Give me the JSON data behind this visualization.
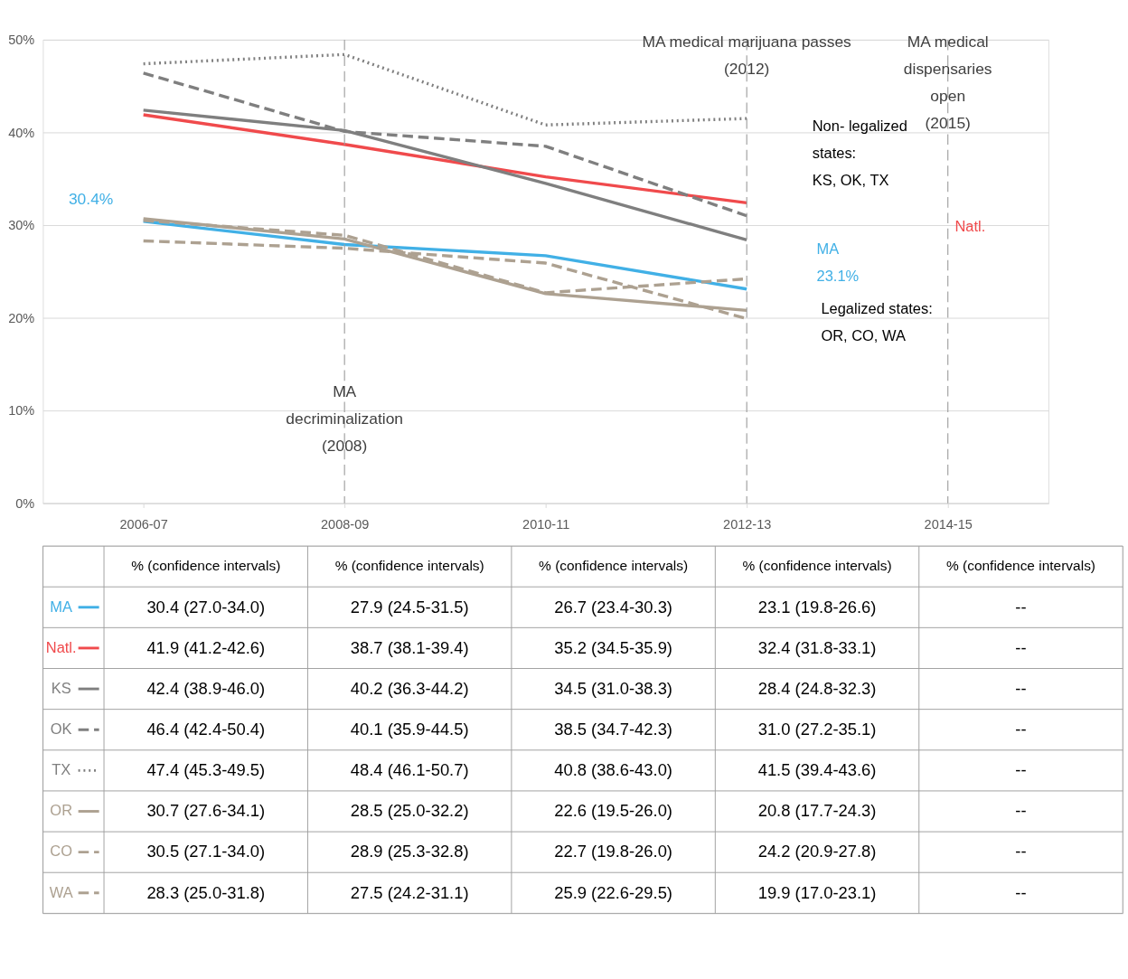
{
  "chart_data": {
    "type": "line",
    "categories": [
      "2006-07",
      "2008-09",
      "2010-11",
      "2012-13",
      "2014-15"
    ],
    "ylim": [
      0,
      50
    ],
    "yticks": [
      {
        "value": 0,
        "label": "0%"
      },
      {
        "value": 10,
        "label": "10%"
      },
      {
        "value": 20,
        "label": "20%"
      },
      {
        "value": 30,
        "label": "30%"
      },
      {
        "value": 40,
        "label": "40%"
      },
      {
        "value": 50,
        "label": "50%"
      }
    ],
    "grid": "y",
    "legend": "bottom",
    "series": [
      {
        "name": "MA",
        "color": "#41b0e6",
        "line_style": "solid",
        "values": [
          30.4,
          27.9,
          26.7,
          23.1,
          null
        ],
        "value_labels": [
          "30.4 (27.0-34.0)",
          "27.9 (24.5-31.5)",
          "26.7 (23.4-30.3)",
          "23.1 (19.8-26.6)",
          "--"
        ]
      },
      {
        "name": "Natl.",
        "color": "#f04a4c",
        "line_style": "solid",
        "values": [
          41.9,
          38.7,
          35.2,
          32.4,
          null
        ],
        "value_labels": [
          "41.9 (41.2-42.6)",
          "38.7 (38.1-39.4)",
          "35.2 (34.5-35.9)",
          "32.4 (31.8-33.1)",
          "--"
        ]
      },
      {
        "name": "KS",
        "color": "#7f7f7f",
        "line_style": "solid",
        "values": [
          42.4,
          40.2,
          34.5,
          28.4,
          null
        ],
        "value_labels": [
          "42.4 (38.9-46.0)",
          "40.2 (36.3-44.2)",
          "34.5 (31.0-38.3)",
          "28.4 (24.8-32.3)",
          "--"
        ]
      },
      {
        "name": "OK",
        "color": "#7f7f7f",
        "line_style": "dashed",
        "values": [
          46.4,
          40.1,
          38.5,
          31.0,
          null
        ],
        "value_labels": [
          "46.4 (42.4-50.4)",
          "40.1 (35.9-44.5)",
          "38.5 (34.7-42.3)",
          "31.0 (27.2-35.1)",
          "--"
        ]
      },
      {
        "name": "TX",
        "color": "#7f7f7f",
        "line_style": "dotted",
        "values": [
          47.4,
          48.4,
          40.8,
          41.5,
          null
        ],
        "value_labels": [
          "47.4 (45.3-49.5)",
          "48.4 (46.1-50.7)",
          "40.8 (38.6-43.0)",
          "41.5 (39.4-43.6)",
          "--"
        ]
      },
      {
        "name": "OR",
        "color": "#ada191",
        "line_style": "solid",
        "values": [
          30.7,
          28.5,
          22.6,
          20.8,
          null
        ],
        "value_labels": [
          "30.7 (27.6-34.1)",
          "28.5 (25.0-32.2)",
          "22.6 (19.5-26.0)",
          "20.8 (17.7-24.3)",
          "--"
        ]
      },
      {
        "name": "CO",
        "color": "#ada191",
        "line_style": "dashed",
        "values": [
          30.5,
          28.9,
          22.7,
          24.2,
          null
        ],
        "value_labels": [
          "30.5 (27.1-34.0)",
          "28.9 (25.3-32.8)",
          "22.7 (19.8-26.0)",
          "24.2 (20.9-27.8)",
          "--"
        ]
      },
      {
        "name": "WA",
        "color": "#ada191",
        "line_style": "dashed",
        "values": [
          28.3,
          27.5,
          25.9,
          19.9,
          null
        ],
        "value_labels": [
          "28.3 (25.0-31.8)",
          "27.5 (24.2-31.1)",
          "25.9 (22.6-29.5)",
          "19.9 (17.0-23.1)",
          "--"
        ]
      }
    ],
    "ref_lines": [
      {
        "axis": "x",
        "value": "2008-09",
        "label": "MA\ndecriminalization\n(2008)",
        "color": "#a0a0a0",
        "line_style": "dashed"
      },
      {
        "axis": "x",
        "value": "2012-13",
        "label": "MA medical marijuana passes\n(2012)",
        "color": "#a0a0a0",
        "line_style": "dashed"
      },
      {
        "axis": "x",
        "value": "2014-15",
        "label": "MA medical\ndispensaries\nopen\n(2015)",
        "color": "#a0a0a0",
        "line_style": "dashed"
      }
    ],
    "annotations": [
      {
        "text": "30.4%",
        "x": "2006-07",
        "y": 30.4
      },
      "MA\n23.1%",
      "Natl.",
      "Non- legalized\nstates:\nKS, OK, TX",
      "Legalized states:\nOR, CO, WA",
      "% (confidence intervals)"
    ],
    "data_labels": true
  }
}
